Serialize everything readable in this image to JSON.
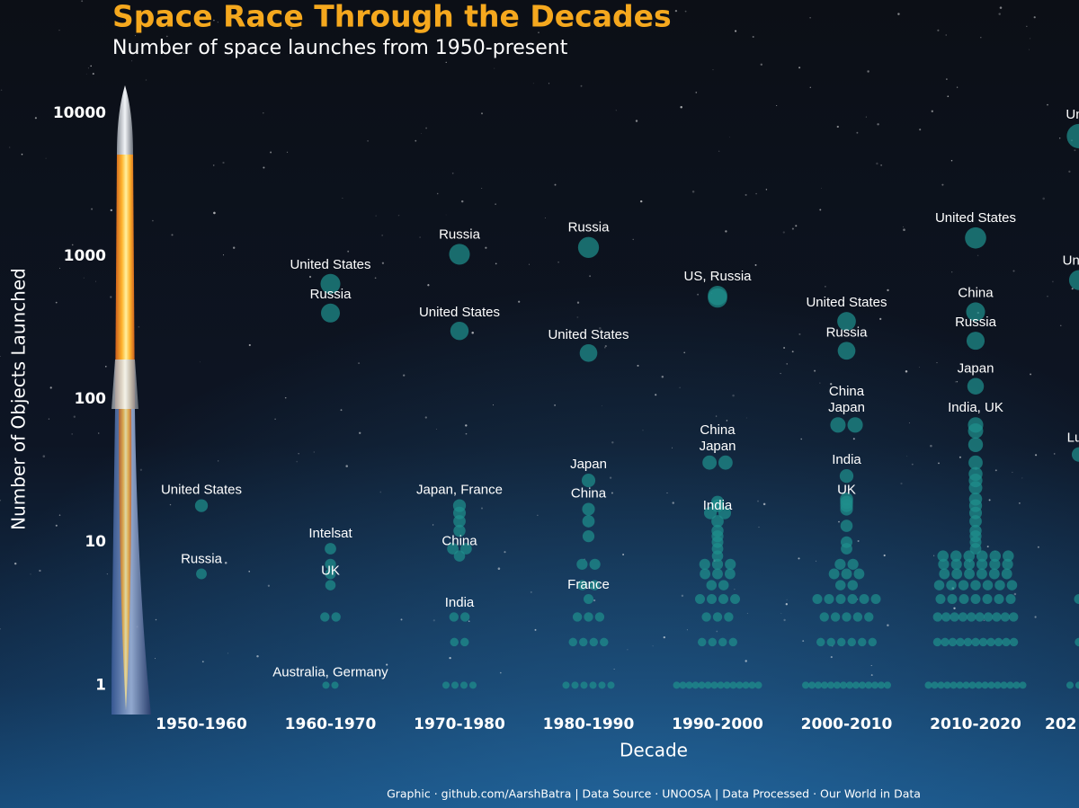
{
  "chart_data": {
    "type": "swarm",
    "title": "Space Race Through the Decades",
    "subtitle": "Number of space launches from 1950-present",
    "y_label": "Number of Objects Launched",
    "x_label": "Decade",
    "caption": "Graphic · github.com/AarshBatra | Data Source · UNOOSA | Data Processed · Our World in Data",
    "log_scale": true,
    "color": "#1f8f8c",
    "ylim": [
      0.67,
      16800
    ],
    "yticks": [
      1,
      10,
      100,
      1000,
      10000
    ],
    "categories": [
      "1950-1960",
      "1960-1970",
      "1970-1980",
      "1980-1990",
      "1990-2000",
      "2000-2010",
      "2010-2020",
      "202"
    ],
    "points": [
      {
        "category": 0,
        "value": 18,
        "label": "United States"
      },
      {
        "category": 0,
        "value": 6,
        "label": "Russia"
      },
      {
        "category": 1,
        "value": 640,
        "label": "United States"
      },
      {
        "category": 1,
        "value": 400,
        "label": "Russia"
      },
      {
        "category": 1,
        "value": 9,
        "label": "Intelsat"
      },
      {
        "category": 1,
        "value": 7
      },
      {
        "category": 1,
        "value": 6
      },
      {
        "category": 1,
        "value": 5,
        "label": "UK"
      },
      {
        "category": 1,
        "value": 3
      },
      {
        "category": 1,
        "value": 3
      },
      {
        "category": 1,
        "value": 1,
        "label": "Australia, Germany"
      },
      {
        "category": 1,
        "value": 1
      },
      {
        "category": 2,
        "value": 1030,
        "label": "Russia"
      },
      {
        "category": 2,
        "value": 300,
        "label": "United States"
      },
      {
        "category": 2,
        "value": 18,
        "label": "Japan, France"
      },
      {
        "category": 2,
        "value": 16
      },
      {
        "category": 2,
        "value": 14
      },
      {
        "category": 2,
        "value": 12
      },
      {
        "category": 2,
        "value": 9
      },
      {
        "category": 2,
        "value": 9
      },
      {
        "category": 2,
        "value": 8,
        "label": "China"
      },
      {
        "category": 2,
        "value": 3,
        "label": "India"
      },
      {
        "category": 2,
        "value": 3
      },
      {
        "category": 2,
        "value": 2
      },
      {
        "category": 2,
        "value": 2
      },
      {
        "category": 2,
        "value": 1
      },
      {
        "category": 2,
        "value": 1
      },
      {
        "category": 2,
        "value": 1
      },
      {
        "category": 2,
        "value": 1
      },
      {
        "category": 3,
        "value": 1150,
        "label": "Russia"
      },
      {
        "category": 3,
        "value": 210,
        "label": "United States"
      },
      {
        "category": 3,
        "value": 27,
        "label": "Japan"
      },
      {
        "category": 3,
        "value": 17,
        "label": "China"
      },
      {
        "category": 3,
        "value": 14
      },
      {
        "category": 3,
        "value": 11
      },
      {
        "category": 3,
        "value": 7
      },
      {
        "category": 3,
        "value": 7
      },
      {
        "category": 3,
        "value": 5
      },
      {
        "category": 3,
        "value": 5
      },
      {
        "category": 3,
        "value": 4,
        "label": "France"
      },
      {
        "category": 3,
        "value": 3
      },
      {
        "category": 3,
        "value": 3
      },
      {
        "category": 3,
        "value": 3
      },
      {
        "category": 3,
        "value": 2
      },
      {
        "category": 3,
        "value": 2
      },
      {
        "category": 3,
        "value": 2
      },
      {
        "category": 3,
        "value": 2
      },
      {
        "category": 3,
        "value": 1
      },
      {
        "category": 3,
        "value": 1
      },
      {
        "category": 3,
        "value": 1
      },
      {
        "category": 3,
        "value": 1
      },
      {
        "category": 3,
        "value": 1
      },
      {
        "category": 3,
        "value": 1
      },
      {
        "category": 4,
        "value": 530,
        "label": "US, Russia"
      },
      {
        "category": 4,
        "value": 510
      },
      {
        "category": 4,
        "value": 36,
        "label": "Japan"
      },
      {
        "category": 4,
        "value": 36,
        "label": "China"
      },
      {
        "category": 4,
        "value": 19
      },
      {
        "category": 4,
        "value": 18
      },
      {
        "category": 4,
        "value": 16
      },
      {
        "category": 4,
        "value": 16
      },
      {
        "category": 4,
        "value": 14,
        "label": "India"
      },
      {
        "category": 4,
        "value": 12
      },
      {
        "category": 4,
        "value": 11
      },
      {
        "category": 4,
        "value": 10
      },
      {
        "category": 4,
        "value": 9
      },
      {
        "category": 4,
        "value": 8
      },
      {
        "category": 4,
        "value": 7
      },
      {
        "category": 4,
        "value": 7
      },
      {
        "category": 4,
        "value": 7
      },
      {
        "category": 4,
        "value": 6
      },
      {
        "category": 4,
        "value": 6
      },
      {
        "category": 4,
        "value": 6
      },
      {
        "category": 4,
        "value": 5
      },
      {
        "category": 4,
        "value": 5
      },
      {
        "category": 4,
        "value": 4
      },
      {
        "category": 4,
        "value": 4
      },
      {
        "category": 4,
        "value": 4
      },
      {
        "category": 4,
        "value": 4
      },
      {
        "category": 4,
        "value": 3
      },
      {
        "category": 4,
        "value": 3
      },
      {
        "category": 4,
        "value": 3
      },
      {
        "category": 4,
        "value": 2
      },
      {
        "category": 4,
        "value": 2
      },
      {
        "category": 4,
        "value": 2
      },
      {
        "category": 4,
        "value": 2
      },
      {
        "category": 4,
        "value": 1
      },
      {
        "category": 4,
        "value": 1
      },
      {
        "category": 4,
        "value": 1
      },
      {
        "category": 4,
        "value": 1
      },
      {
        "category": 4,
        "value": 1
      },
      {
        "category": 4,
        "value": 1
      },
      {
        "category": 4,
        "value": 1
      },
      {
        "category": 4,
        "value": 1
      },
      {
        "category": 4,
        "value": 1
      },
      {
        "category": 4,
        "value": 1
      },
      {
        "category": 4,
        "value": 1
      },
      {
        "category": 4,
        "value": 1
      },
      {
        "category": 4,
        "value": 1
      },
      {
        "category": 4,
        "value": 1
      },
      {
        "category": 5,
        "value": 350,
        "label": "United States"
      },
      {
        "category": 5,
        "value": 218,
        "label": "Russia"
      },
      {
        "category": 5,
        "value": 66,
        "label": "Japan"
      },
      {
        "category": 5,
        "value": 66,
        "label": "China"
      },
      {
        "category": 5,
        "value": 29,
        "label": "India"
      },
      {
        "category": 5,
        "value": 20
      },
      {
        "category": 5,
        "value": 19
      },
      {
        "category": 5,
        "value": 18,
        "label": "UK"
      },
      {
        "category": 5,
        "value": 17
      },
      {
        "category": 5,
        "value": 13
      },
      {
        "category": 5,
        "value": 10
      },
      {
        "category": 5,
        "value": 9
      },
      {
        "category": 5,
        "value": 7
      },
      {
        "category": 5,
        "value": 7
      },
      {
        "category": 5,
        "value": 6
      },
      {
        "category": 5,
        "value": 6
      },
      {
        "category": 5,
        "value": 6
      },
      {
        "category": 5,
        "value": 5
      },
      {
        "category": 5,
        "value": 5
      },
      {
        "category": 5,
        "value": 4
      },
      {
        "category": 5,
        "value": 4
      },
      {
        "category": 5,
        "value": 4
      },
      {
        "category": 5,
        "value": 4
      },
      {
        "category": 5,
        "value": 4
      },
      {
        "category": 5,
        "value": 4
      },
      {
        "category": 5,
        "value": 3
      },
      {
        "category": 5,
        "value": 3
      },
      {
        "category": 5,
        "value": 3
      },
      {
        "category": 5,
        "value": 3
      },
      {
        "category": 5,
        "value": 3
      },
      {
        "category": 5,
        "value": 2
      },
      {
        "category": 5,
        "value": 2
      },
      {
        "category": 5,
        "value": 2
      },
      {
        "category": 5,
        "value": 2
      },
      {
        "category": 5,
        "value": 2
      },
      {
        "category": 5,
        "value": 2
      },
      {
        "category": 5,
        "value": 1
      },
      {
        "category": 5,
        "value": 1
      },
      {
        "category": 5,
        "value": 1
      },
      {
        "category": 5,
        "value": 1
      },
      {
        "category": 5,
        "value": 1
      },
      {
        "category": 5,
        "value": 1
      },
      {
        "category": 5,
        "value": 1
      },
      {
        "category": 5,
        "value": 1
      },
      {
        "category": 5,
        "value": 1
      },
      {
        "category": 5,
        "value": 1
      },
      {
        "category": 5,
        "value": 1
      },
      {
        "category": 5,
        "value": 1
      },
      {
        "category": 5,
        "value": 1
      },
      {
        "category": 5,
        "value": 1
      },
      {
        "category": 6,
        "value": 1340,
        "label": "United States"
      },
      {
        "category": 6,
        "value": 408,
        "label": "China"
      },
      {
        "category": 6,
        "value": 256,
        "label": "Russia"
      },
      {
        "category": 6,
        "value": 123,
        "label": "Japan"
      },
      {
        "category": 6,
        "value": 66,
        "label": "India, UK"
      },
      {
        "category": 6,
        "value": 60
      },
      {
        "category": 6,
        "value": 48
      },
      {
        "category": 6,
        "value": 36
      },
      {
        "category": 6,
        "value": 30
      },
      {
        "category": 6,
        "value": 27
      },
      {
        "category": 6,
        "value": 24
      },
      {
        "category": 6,
        "value": 20
      },
      {
        "category": 6,
        "value": 18
      },
      {
        "category": 6,
        "value": 16
      },
      {
        "category": 6,
        "value": 14
      },
      {
        "category": 6,
        "value": 12
      },
      {
        "category": 6,
        "value": 11
      },
      {
        "category": 6,
        "value": 10
      },
      {
        "category": 6,
        "value": 9
      },
      {
        "category": 6,
        "value": 8
      },
      {
        "category": 6,
        "value": 8
      },
      {
        "category": 6,
        "value": 8
      },
      {
        "category": 6,
        "value": 8
      },
      {
        "category": 6,
        "value": 8
      },
      {
        "category": 6,
        "value": 8
      },
      {
        "category": 6,
        "value": 7
      },
      {
        "category": 6,
        "value": 7
      },
      {
        "category": 6,
        "value": 7
      },
      {
        "category": 6,
        "value": 7
      },
      {
        "category": 6,
        "value": 7
      },
      {
        "category": 6,
        "value": 7
      },
      {
        "category": 6,
        "value": 6
      },
      {
        "category": 6,
        "value": 6
      },
      {
        "category": 6,
        "value": 6
      },
      {
        "category": 6,
        "value": 6
      },
      {
        "category": 6,
        "value": 6
      },
      {
        "category": 6,
        "value": 6
      },
      {
        "category": 6,
        "value": 5
      },
      {
        "category": 6,
        "value": 5
      },
      {
        "category": 6,
        "value": 5
      },
      {
        "category": 6,
        "value": 5
      },
      {
        "category": 6,
        "value": 5
      },
      {
        "category": 6,
        "value": 5
      },
      {
        "category": 6,
        "value": 5
      },
      {
        "category": 6,
        "value": 4
      },
      {
        "category": 6,
        "value": 4
      },
      {
        "category": 6,
        "value": 4
      },
      {
        "category": 6,
        "value": 4
      },
      {
        "category": 6,
        "value": 4
      },
      {
        "category": 6,
        "value": 4
      },
      {
        "category": 6,
        "value": 4
      },
      {
        "category": 6,
        "value": 3
      },
      {
        "category": 6,
        "value": 3
      },
      {
        "category": 6,
        "value": 3
      },
      {
        "category": 6,
        "value": 3
      },
      {
        "category": 6,
        "value": 3
      },
      {
        "category": 6,
        "value": 3
      },
      {
        "category": 6,
        "value": 3
      },
      {
        "category": 6,
        "value": 3
      },
      {
        "category": 6,
        "value": 3
      },
      {
        "category": 6,
        "value": 3
      },
      {
        "category": 6,
        "value": 2
      },
      {
        "category": 6,
        "value": 2
      },
      {
        "category": 6,
        "value": 2
      },
      {
        "category": 6,
        "value": 2
      },
      {
        "category": 6,
        "value": 2
      },
      {
        "category": 6,
        "value": 2
      },
      {
        "category": 6,
        "value": 2
      },
      {
        "category": 6,
        "value": 2
      },
      {
        "category": 6,
        "value": 2
      },
      {
        "category": 6,
        "value": 2
      },
      {
        "category": 6,
        "value": 2
      },
      {
        "category": 6,
        "value": 1
      },
      {
        "category": 6,
        "value": 1
      },
      {
        "category": 6,
        "value": 1
      },
      {
        "category": 6,
        "value": 1
      },
      {
        "category": 6,
        "value": 1
      },
      {
        "category": 6,
        "value": 1
      },
      {
        "category": 6,
        "value": 1
      },
      {
        "category": 6,
        "value": 1
      },
      {
        "category": 6,
        "value": 1
      },
      {
        "category": 6,
        "value": 1
      },
      {
        "category": 6,
        "value": 1
      },
      {
        "category": 6,
        "value": 1
      },
      {
        "category": 6,
        "value": 1
      },
      {
        "category": 6,
        "value": 1
      },
      {
        "category": 6,
        "value": 1
      },
      {
        "category": 6,
        "value": 1
      },
      {
        "category": 7,
        "value": 6900,
        "label": "Un"
      },
      {
        "category": 7,
        "value": 680,
        "label": "Unit"
      },
      {
        "category": 7,
        "value": 41,
        "label": "Lu"
      },
      {
        "category": 7,
        "value": 4
      },
      {
        "category": 7,
        "value": 2
      },
      {
        "category": 7,
        "value": 1
      },
      {
        "category": 7,
        "value": 1
      },
      {
        "category": 7,
        "value": 1
      }
    ]
  }
}
